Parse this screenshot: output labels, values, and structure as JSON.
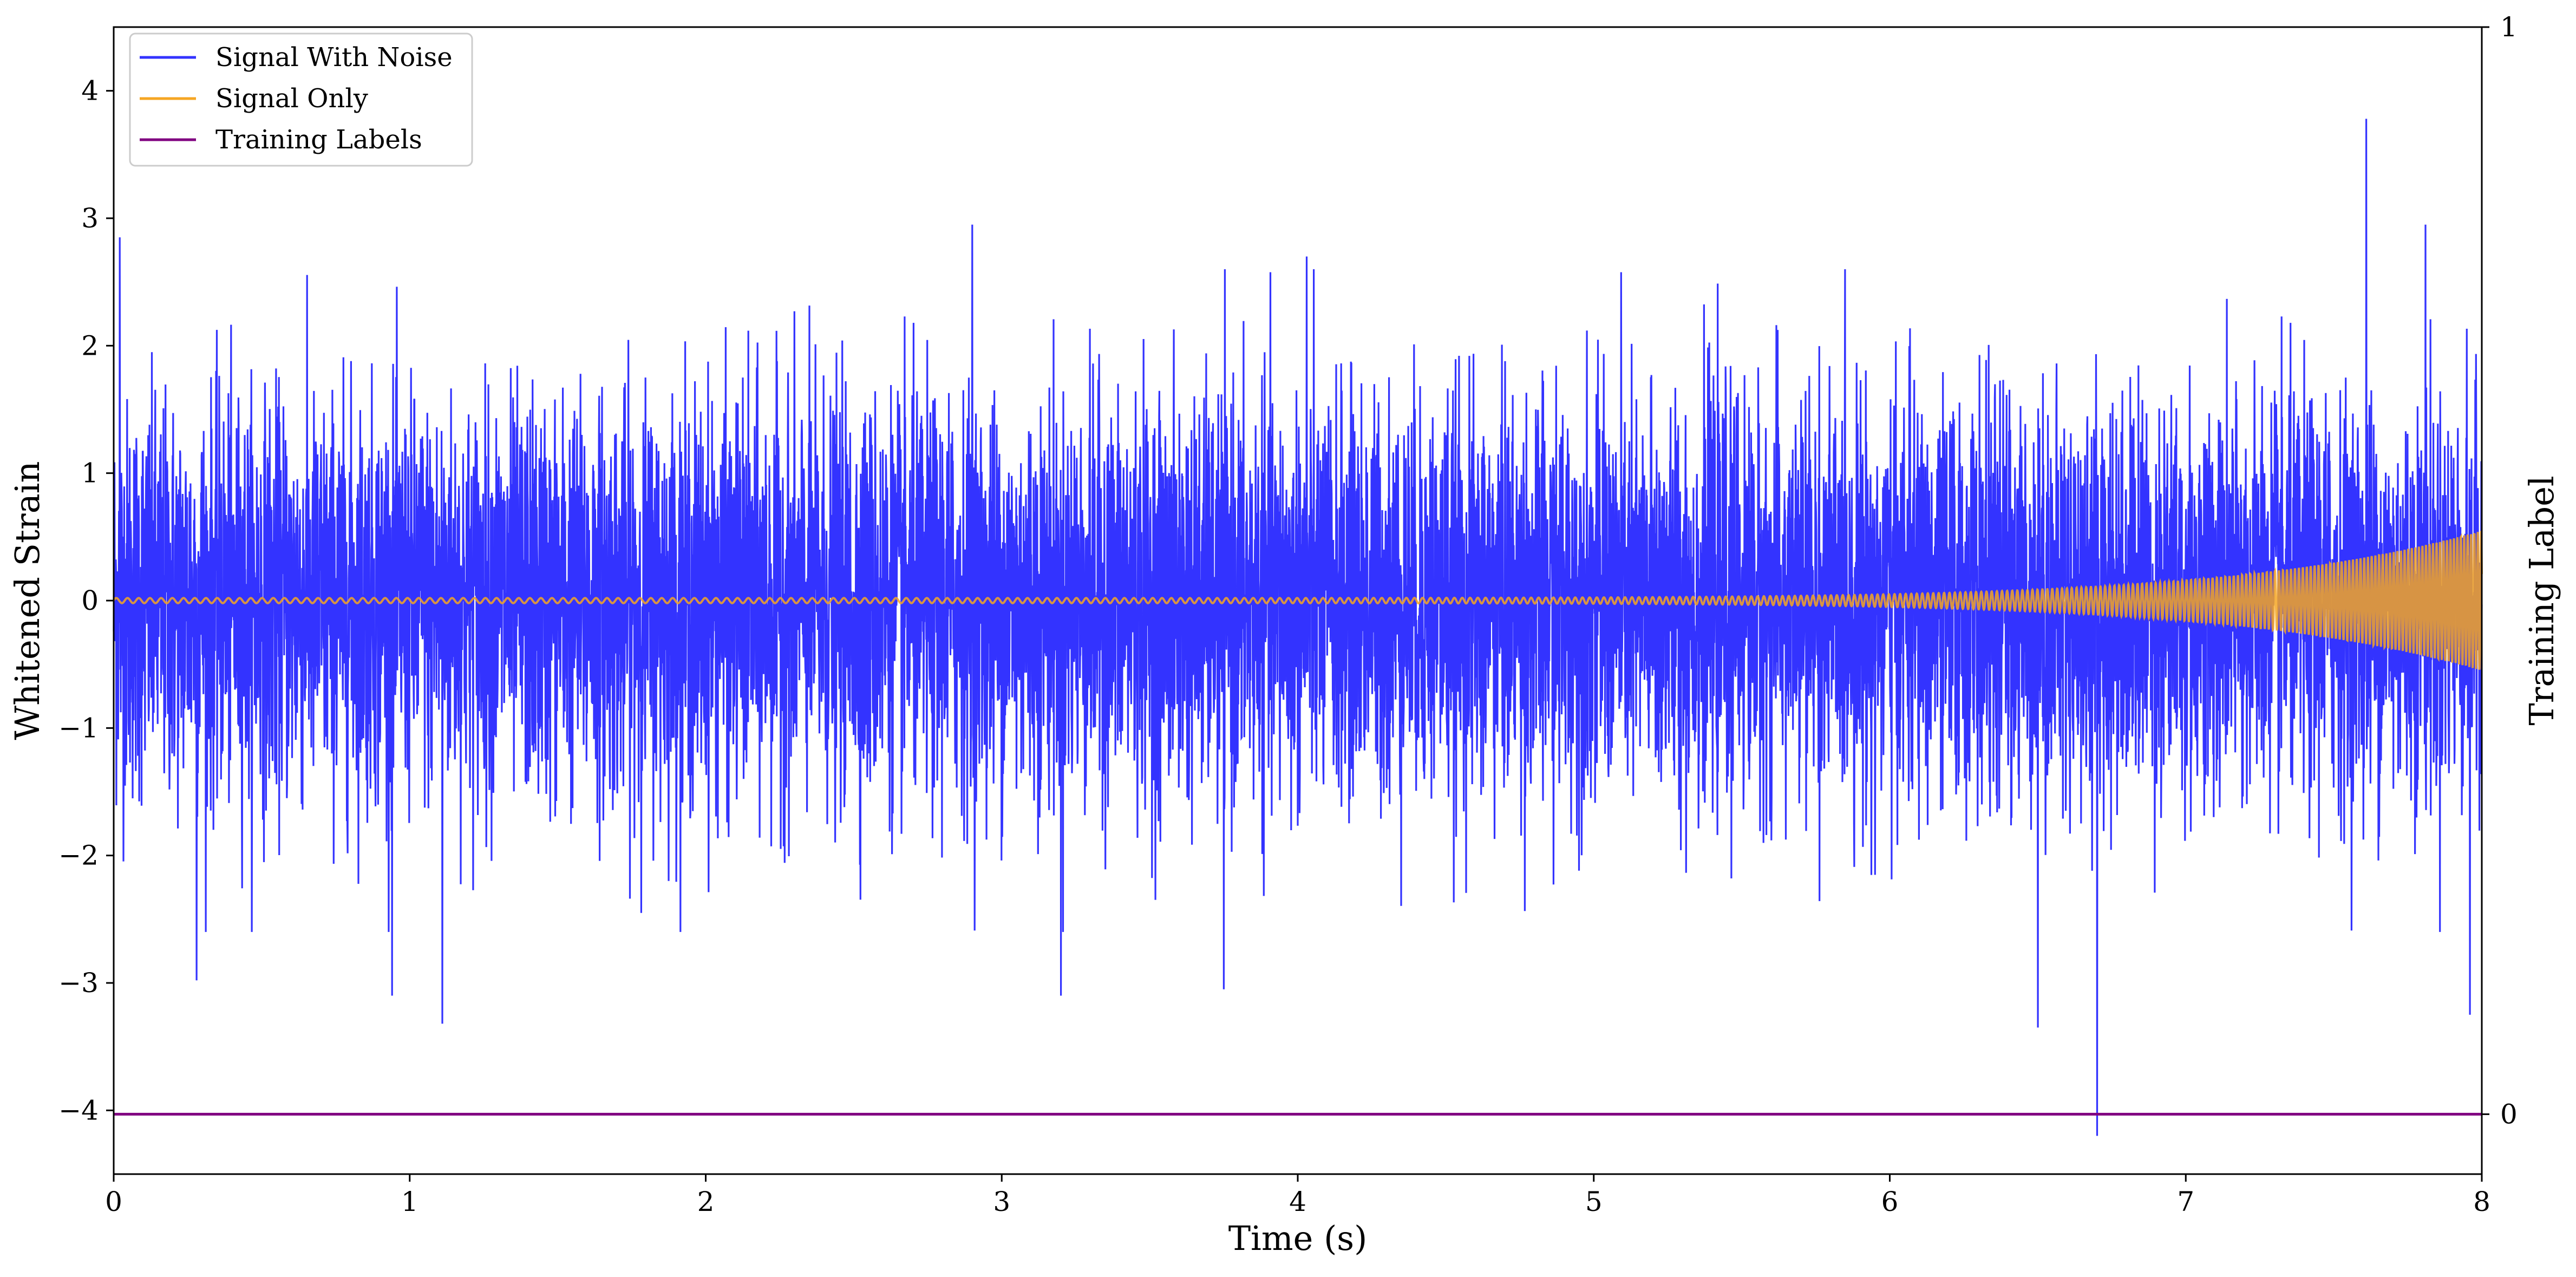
{
  "chart_data": {
    "type": "line",
    "title": "",
    "xlabel": "Time (s)",
    "ylabel": "Whitened Strain",
    "y2label": "Training Label",
    "xlim": [
      0,
      8
    ],
    "ylim": [
      -4.5,
      4.5
    ],
    "y2lim": [
      0,
      1
    ],
    "xticks": [
      0,
      1,
      2,
      3,
      4,
      5,
      6,
      7,
      8
    ],
    "yticks": [
      -4,
      -3,
      -2,
      -1,
      0,
      1,
      2,
      3,
      4
    ],
    "y2ticks": [
      0,
      1
    ],
    "tick_labels": {
      "x": [
        "0",
        "1",
        "2",
        "3",
        "4",
        "5",
        "6",
        "7",
        "8"
      ],
      "y": [
        "−4",
        "−3",
        "−2",
        "−1",
        "0",
        "1",
        "2",
        "3",
        "4"
      ],
      "y2": [
        "0",
        "1"
      ]
    },
    "grid": false,
    "legend_position": "upper-left",
    "series": [
      {
        "name": "Signal With Noise",
        "color": "#3333ff",
        "axis": "left",
        "description_stats": {
          "amplitude_approx": 2.5
        },
        "peaks": [
          {
            "x": 0.02,
            "y": 2.85
          },
          {
            "x": 0.28,
            "y": -2.98
          },
          {
            "x": 0.94,
            "y": -3.1
          },
          {
            "x": 1.11,
            "y": -3.32
          },
          {
            "x": 2.9,
            "y": 2.95
          },
          {
            "x": 3.2,
            "y": -3.1
          },
          {
            "x": 3.75,
            "y": -3.05
          },
          {
            "x": 4.03,
            "y": 2.7
          },
          {
            "x": 6.5,
            "y": -3.35
          },
          {
            "x": 6.7,
            "y": -4.2
          },
          {
            "x": 7.61,
            "y": 3.78
          },
          {
            "x": 7.81,
            "y": 2.95
          },
          {
            "x": 7.96,
            "y": -3.25
          }
        ]
      },
      {
        "name": "Signal Only",
        "color": "#f5a623",
        "axis": "left",
        "chirp": {
          "start_amplitude": 0.02,
          "end_amplitude": 0.55,
          "start_cycles_per_s": 12,
          "end_cycles_per_s": 40
        }
      },
      {
        "name": "Training Labels",
        "color": "#800080",
        "axis": "right",
        "x": [
          0,
          8
        ],
        "y": [
          0,
          0
        ]
      }
    ]
  }
}
